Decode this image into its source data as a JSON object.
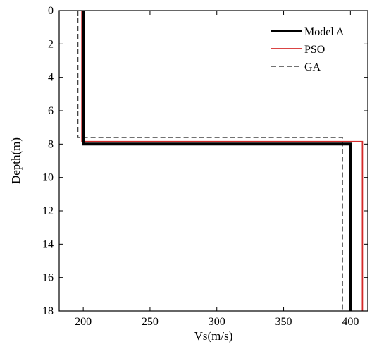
{
  "chart_data": {
    "type": "line",
    "xlabel": "Vs(m/s)",
    "ylabel": "Depth(m)",
    "xlim": [
      182,
      413
    ],
    "ylim": [
      18,
      0
    ],
    "y_reversed": true,
    "xticks": [
      200,
      250,
      300,
      350,
      400
    ],
    "xtick_labels": [
      "200",
      "250",
      "300",
      "350",
      "400"
    ],
    "yticks": [
      0,
      2,
      4,
      6,
      8,
      10,
      12,
      14,
      16,
      18
    ],
    "ytick_labels": [
      "0",
      "2",
      "4",
      "6",
      "8",
      "10",
      "12",
      "14",
      "16",
      "18"
    ],
    "grid": false,
    "legend_position": "top-right",
    "series": [
      {
        "name": "Model A",
        "color": "#000000",
        "style": "solid-thick",
        "points": [
          [
            200,
            0
          ],
          [
            200,
            8
          ],
          [
            400,
            8
          ],
          [
            400,
            18
          ]
        ]
      },
      {
        "name": "PSO",
        "color": "#d42a2a",
        "style": "solid",
        "points": [
          [
            199,
            0
          ],
          [
            199,
            7.85
          ],
          [
            409,
            7.85
          ],
          [
            409,
            18
          ]
        ]
      },
      {
        "name": "GA",
        "color": "#444444",
        "style": "dashed",
        "points": [
          [
            196,
            0
          ],
          [
            196,
            7.6
          ],
          [
            394,
            7.6
          ],
          [
            394,
            18
          ]
        ]
      }
    ]
  }
}
